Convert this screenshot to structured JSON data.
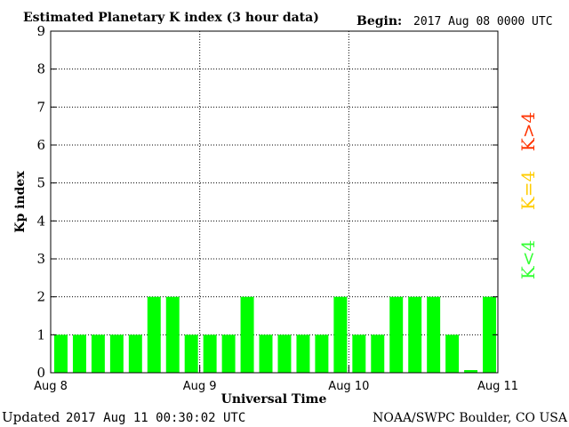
{
  "chart_data": {
    "type": "bar",
    "title": "Estimated Planetary K index (3 hour data)",
    "begin_label": "Begin:",
    "begin_value": "2017 Aug 08 0000 UTC",
    "ylabel": "Kp index",
    "xlabel": "Universal Time",
    "ylim": [
      0,
      9
    ],
    "yticks": [
      "0",
      "1",
      "2",
      "3",
      "4",
      "5",
      "6",
      "7",
      "8",
      "9"
    ],
    "xticks": [
      "Aug 8",
      "Aug 9",
      "Aug 10",
      "Aug 11"
    ],
    "interval_hours": 3,
    "values": [
      1,
      1,
      1,
      1,
      1,
      2,
      2,
      1,
      1,
      1,
      2,
      1,
      1,
      1,
      1,
      2,
      1,
      1,
      2,
      2,
      2,
      1,
      0.07,
      2
    ],
    "bar_color": "#00ff00",
    "grid": "dotted",
    "legend": [
      {
        "label": "K<4",
        "color": "#33ff33"
      },
      {
        "label": "K=4",
        "color": "#ffcc00"
      },
      {
        "label": "K>4",
        "color": "#ff3300"
      }
    ],
    "updated_label": "Updated",
    "updated_value": "2017 Aug 11 00:30:02 UTC",
    "credit": "NOAA/SWPC Boulder, CO USA"
  }
}
